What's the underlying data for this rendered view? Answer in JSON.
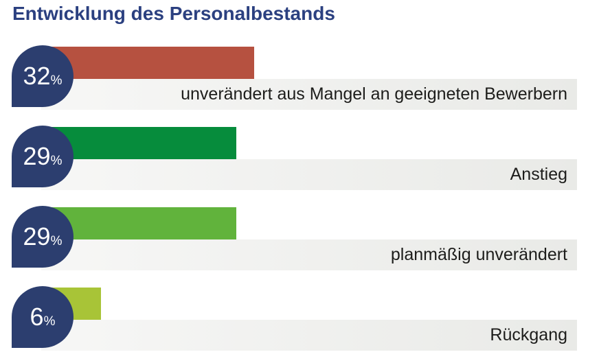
{
  "title": "Entwicklung des Personalbestands",
  "colors": {
    "title_blue": "#2b4080",
    "badge_blue": "#2c3e6f",
    "track_gray": "#ededeb",
    "label_text": "#1d1d1b",
    "background": "#ffffff"
  },
  "chart_data": {
    "type": "bar",
    "orientation": "horizontal",
    "title": "Entwicklung des Personalbestands",
    "categories": [
      "unverändert aus Mangel an geeigneten Bewerbern",
      "Anstieg",
      "planmäßig unverändert",
      "Rückgang"
    ],
    "values": [
      32,
      29,
      29,
      6
    ],
    "unit": "%",
    "bar_colors": [
      "#b65140",
      "#068c3c",
      "#61b33c",
      "#a8c437"
    ],
    "value_label_style": "dark-blue teardrop badge with white percentage",
    "xlabel": "",
    "ylabel": "",
    "grid": false,
    "legend": false
  },
  "rows": [
    {
      "value": "32",
      "unit": "%",
      "label": "unverändert aus Mangel an geeigneten Bewerbern",
      "color": "#b65140"
    },
    {
      "value": "29",
      "unit": "%",
      "label": "Anstieg",
      "color": "#068c3c"
    },
    {
      "value": "29",
      "unit": "%",
      "label": "planmäßig unverändert",
      "color": "#61b33c"
    },
    {
      "value": "6",
      "unit": "%",
      "label": "Rückgang",
      "color": "#a8c437"
    }
  ]
}
